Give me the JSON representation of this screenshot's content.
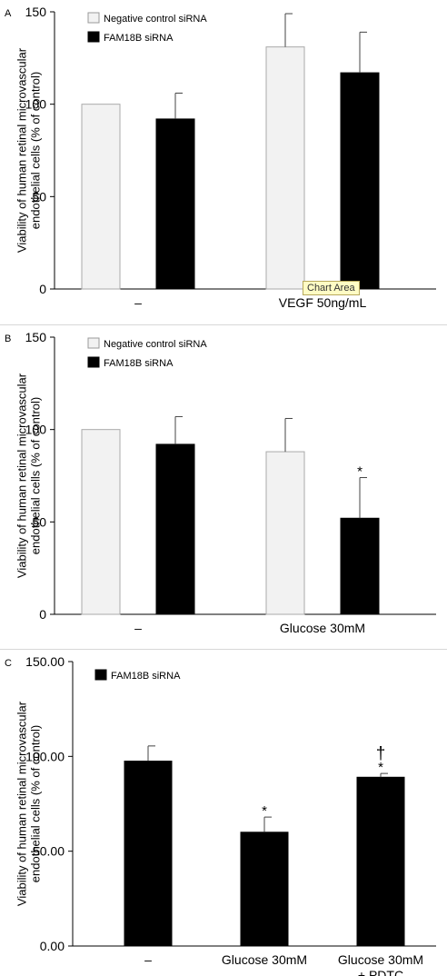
{
  "chart_data": [
    {
      "type": "bar",
      "panel_label": "A",
      "categories": [
        "–",
        "VEGF 50ng/mL"
      ],
      "series": [
        {
          "name": "Negative control  siRNA",
          "values": [
            100,
            131
          ],
          "errors": [
            0,
            18
          ],
          "color": "#f2f2f2"
        },
        {
          "name": "FAM18B siRNA",
          "values": [
            92,
            117
          ],
          "errors": [
            14,
            22
          ],
          "color": "#000000"
        }
      ],
      "ylabel": "Viability of human retinal microvascular endothelial cells (% of control)",
      "ylim": [
        0,
        150
      ],
      "yticks": [
        "0",
        "50",
        "100",
        "150"
      ],
      "annotations": [],
      "legend": "top-left",
      "grid": false
    },
    {
      "type": "bar",
      "panel_label": "B",
      "categories": [
        "–",
        "Glucose 30mM"
      ],
      "series": [
        {
          "name": "Negative control  siRNA",
          "values": [
            100,
            88
          ],
          "errors": [
            0,
            18
          ],
          "color": "#f2f2f2"
        },
        {
          "name": "FAM18B siRNA",
          "values": [
            92,
            52
          ],
          "errors": [
            15,
            22
          ],
          "color": "#000000"
        }
      ],
      "ylabel": "Viability of human retinal microvascular endothelial cells (% of control)",
      "ylim": [
        0,
        150
      ],
      "yticks": [
        "0",
        "50",
        "100",
        "150"
      ],
      "annotations": [
        {
          "series": 1,
          "category": 1,
          "text": "*"
        }
      ],
      "legend": "top-left",
      "grid": false
    },
    {
      "type": "bar",
      "panel_label": "C",
      "categories": [
        "–",
        "Glucose 30mM",
        "Glucose 30mM\n+  PDTC"
      ],
      "series": [
        {
          "name": "FAM18B siRNA",
          "values": [
            97.5,
            60,
            89
          ],
          "errors": [
            8,
            8,
            2
          ],
          "color": "#000000"
        }
      ],
      "ylabel": "Viability of human retinal microvascular endothelial cells (% of control)",
      "ylim": [
        0,
        150
      ],
      "yticks": [
        "0.00",
        "50.00",
        "100.00",
        "150.00"
      ],
      "annotations": [
        {
          "series": 0,
          "category": 1,
          "text": "*"
        },
        {
          "series": 0,
          "category": 2,
          "text": "*"
        },
        {
          "series": 0,
          "category": 2,
          "text": "†"
        }
      ],
      "legend": "top-left",
      "grid": false
    }
  ],
  "tooltip": {
    "text": "Chart Area"
  }
}
